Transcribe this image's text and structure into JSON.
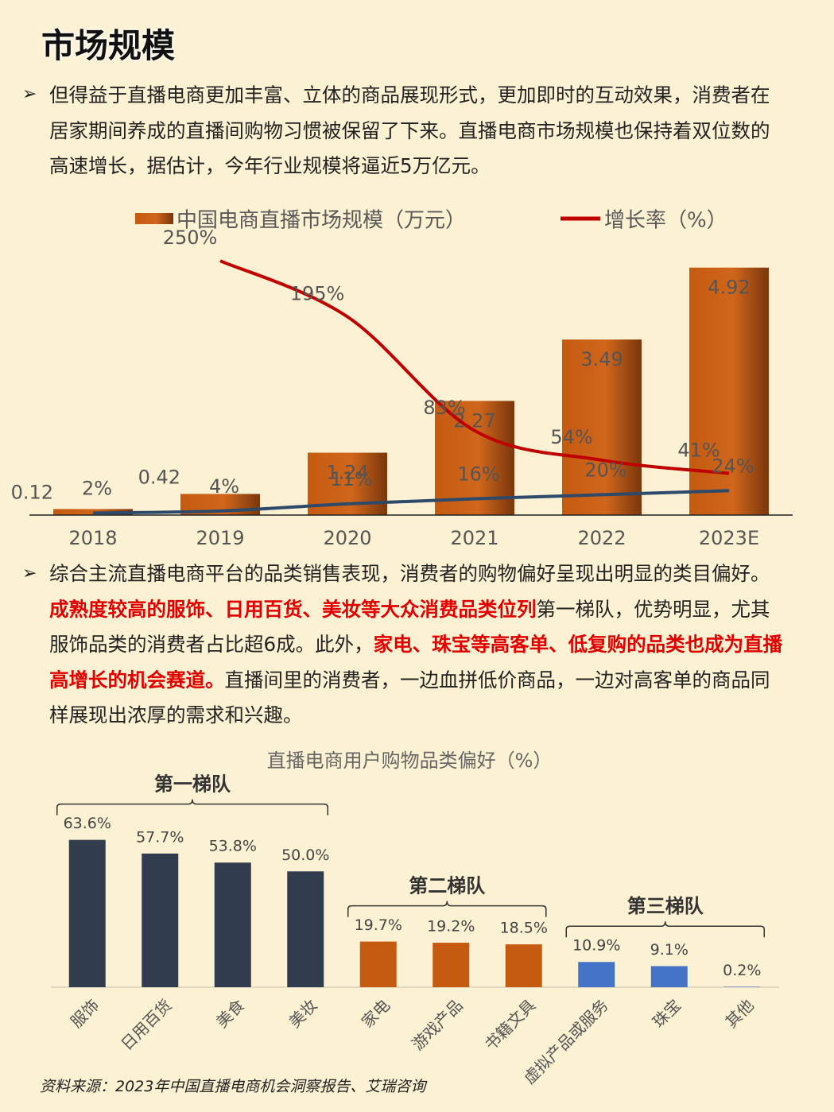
{
  "title": "市场规模",
  "paragraphs": [
    [
      {
        "text": "但得益于直播电商更加丰富、立体的商品展现形式，更加即时的互动效果，消费者在居家期间养成的直播间购物习惯被保留了下来。直播电商市场规模也保持着双位数的高速增长，据估计，今年行业规模将逼近5万亿元。",
        "bold": false
      }
    ],
    [
      {
        "text": "综合主流直播电商平台的品类销售表现，消费者的购物偏好呈现出明显的类目偏好。",
        "bold": false
      },
      {
        "text": "成熟度较高的服饰、日用百货、美妆等大众消费品类位列",
        "bold": true,
        "color": "#e00000"
      },
      {
        "text": "第一梯队，优势明显，尤其服饰品类的消费者占比超6成。此外，",
        "bold": false
      },
      {
        "text": "家电、珠宝等高客单、低复购的品类也成为直播高增长的机会赛道。",
        "bold": true,
        "color": "#e00000"
      },
      {
        "text": "直播间里的消费者，一边血拼低价商品，一边对高客单的商品同样展现出浓厚的需求和兴趣。",
        "bold": false
      }
    ]
  ],
  "chart_data": [
    {
      "type": "bar-line",
      "categories": [
        "2018",
        "2019",
        "2020",
        "2021",
        "2022",
        "2023E"
      ],
      "ylim": [
        0,
        5.5
      ],
      "y2lim": [
        0,
        272
      ],
      "series": [
        {
          "name": "中国电商直播市场规模（万元）",
          "type": "bar",
          "color": "#c55a11",
          "values": [
            0.12,
            0.42,
            1.24,
            2.27,
            3.49,
            4.92
          ]
        },
        {
          "name": "增长率（%）",
          "type": "line",
          "axis": "y2",
          "color": "#c00000",
          "values": [
            null,
            250,
            195,
            83,
            54,
            41
          ],
          "value_labels": [
            null,
            "250%",
            "195%",
            "83%",
            "54%",
            "41%"
          ]
        },
        {
          "type": "line",
          "axis": "y2",
          "color": "#2e4a6b",
          "values": [
            2,
            4,
            11,
            16,
            20,
            24
          ],
          "value_labels": [
            "2%",
            "4%",
            "11%",
            "16%",
            "20%",
            "24%"
          ]
        }
      ]
    },
    {
      "type": "bar",
      "title": "直播电商用户购物品类偏好（%）",
      "ylim": [
        0,
        70
      ],
      "series": [
        {
          "name": "第一梯队",
          "color": "#323c4f",
          "categories": [
            "服饰",
            "日用百货",
            "美食",
            "美妆"
          ],
          "values": [
            63.6,
            57.7,
            53.8,
            50.0
          ],
          "value_labels": [
            "63.6%",
            "57.7%",
            "53.8%",
            "50.0%"
          ]
        },
        {
          "name": "第二梯队",
          "color": "#c55a11",
          "categories": [
            "家电",
            "游戏产品",
            "书籍文具"
          ],
          "values": [
            19.7,
            19.2,
            18.5
          ],
          "value_labels": [
            "19.7%",
            "19.2%",
            "18.5%"
          ]
        },
        {
          "name": "第三梯队",
          "color": "#4472c4",
          "categories": [
            "虚拟产品或服务",
            "珠宝",
            "其他"
          ],
          "values": [
            10.9,
            9.1,
            0.2
          ],
          "value_labels": [
            "10.9%",
            "9.1%",
            "0.2%"
          ]
        }
      ]
    }
  ],
  "source": "资料来源：2023年中国直播电商机会洞察报告、艾瑞咨询"
}
